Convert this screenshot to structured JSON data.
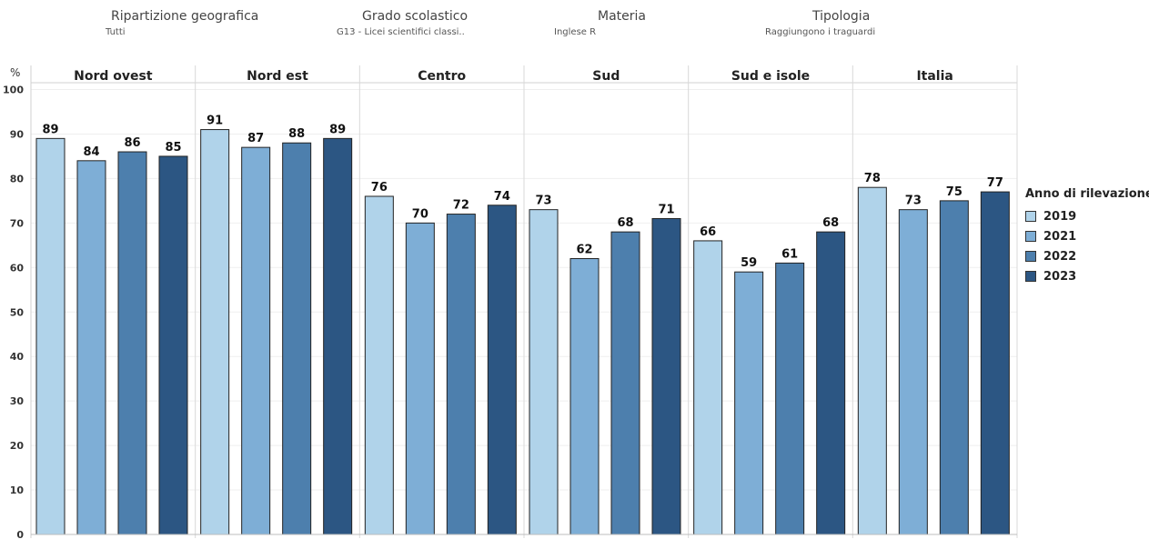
{
  "filters": [
    {
      "title": "Ripartizione geografica",
      "value": "Tutti"
    },
    {
      "title": "Grado scolastico",
      "value": "G13 - Licei scientifici classi.."
    },
    {
      "title": "Materia",
      "value": "Inglese R"
    },
    {
      "title": "Tipologia",
      "value": "Raggiungono i traguardi"
    }
  ],
  "chart_data": {
    "type": "bar",
    "ylabel": "%",
    "ylim": [
      0,
      100
    ],
    "yticks": [
      0,
      10,
      20,
      30,
      40,
      50,
      60,
      70,
      80,
      90,
      100
    ],
    "categories": [
      "Nord ovest",
      "Nord est",
      "Centro",
      "Sud",
      "Sud e isole",
      "Italia"
    ],
    "series": [
      {
        "name": "2019",
        "color": "#b0d3ea",
        "values": [
          89,
          91,
          76,
          73,
          66,
          78
        ]
      },
      {
        "name": "2021",
        "color": "#7eaed6",
        "values": [
          84,
          87,
          70,
          62,
          59,
          73
        ]
      },
      {
        "name": "2022",
        "color": "#4d7fad",
        "values": [
          86,
          88,
          72,
          68,
          61,
          75
        ]
      },
      {
        "name": "2023",
        "color": "#2c5683",
        "values": [
          85,
          89,
          74,
          71,
          68,
          77
        ]
      }
    ],
    "grid": "horizontal",
    "legend": {
      "title": "Anno di rilevazione",
      "placement": "right"
    }
  }
}
